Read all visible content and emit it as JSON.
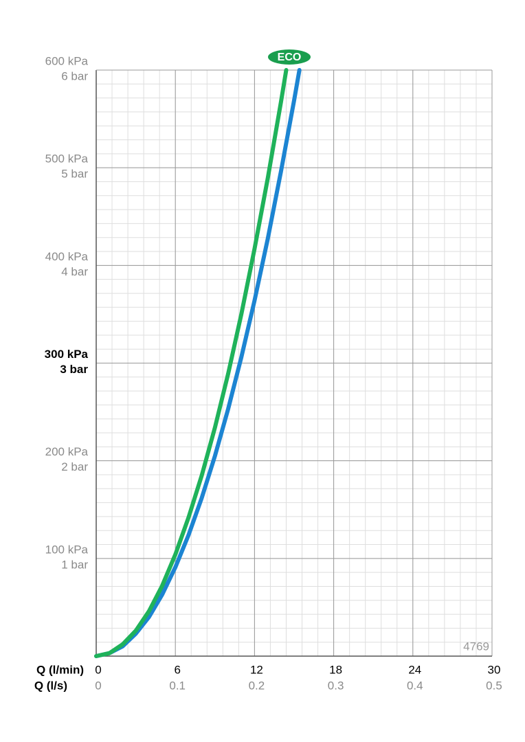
{
  "chart_data": {
    "type": "line",
    "badge": "ECO",
    "code": "4769",
    "xlabel": "Q (l/min)",
    "x2label": "Q (l/s)",
    "xlim": [
      0,
      30
    ],
    "xticks": [
      0,
      6,
      12,
      18,
      24,
      30
    ],
    "x2ticks": [
      {
        "value": 0,
        "label": "0"
      },
      {
        "value": 6,
        "label": "0.1"
      },
      {
        "value": 12,
        "label": "0.2"
      },
      {
        "value": 18,
        "label": "0.3"
      },
      {
        "value": 24,
        "label": "0.4"
      },
      {
        "value": 30,
        "label": "0.5"
      }
    ],
    "ylim": [
      0,
      600
    ],
    "yticks": [
      {
        "value": 100,
        "label": "100 kPa"
      },
      {
        "value": 200,
        "label": "200 kPa"
      },
      {
        "value": 300,
        "label": "300 kPa"
      },
      {
        "value": 400,
        "label": "400 kPa"
      },
      {
        "value": 500,
        "label": "500 kPa"
      },
      {
        "value": 600,
        "label": "600 kPa"
      }
    ],
    "ybarticks": [
      {
        "value": 100,
        "label": "1 bar"
      },
      {
        "value": 200,
        "label": "2 bar"
      },
      {
        "value": 300,
        "label": "3 bar"
      },
      {
        "value": 400,
        "label": "4 bar"
      },
      {
        "value": 500,
        "label": "5 bar"
      },
      {
        "value": 600,
        "label": "6 bar"
      }
    ],
    "highlight_ytick": 300,
    "grid": true,
    "series": [
      {
        "color": "#1fb25a",
        "x": [
          0,
          1,
          2,
          3,
          4,
          5,
          6,
          7,
          8,
          9,
          10,
          11,
          12,
          13,
          14,
          14.4
        ],
        "values": [
          0,
          3,
          12,
          26,
          46,
          72,
          104,
          142,
          185,
          234,
          289,
          350,
          417,
          489,
          567,
          600
        ]
      },
      {
        "color": "#1c84d2",
        "x": [
          0,
          1,
          2,
          3,
          4,
          5,
          6,
          7,
          8,
          9,
          10,
          11,
          12,
          13,
          14,
          15,
          15.4
        ],
        "values": [
          0,
          3,
          10,
          23,
          40,
          63,
          91,
          124,
          162,
          205,
          253,
          306,
          364,
          427,
          496,
          569,
          600
        ]
      }
    ]
  }
}
